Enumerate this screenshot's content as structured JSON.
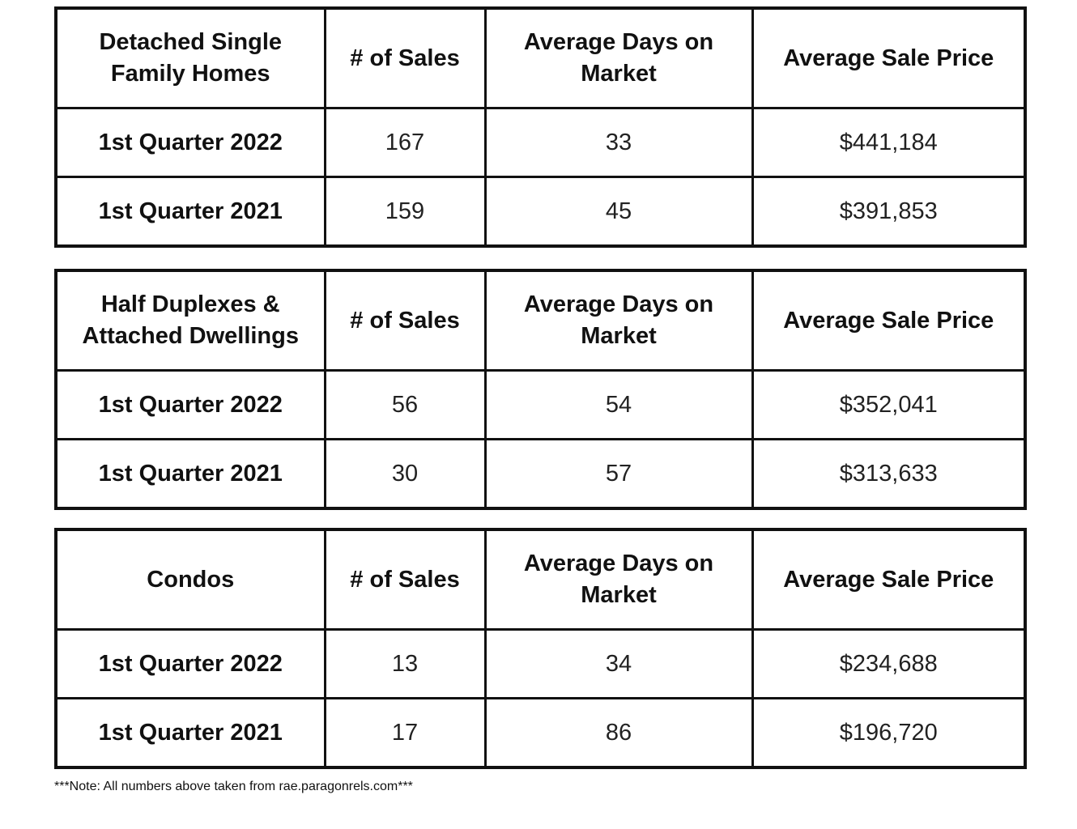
{
  "tables": [
    {
      "header": {
        "category": "Detached Single Family Homes",
        "sales": "# of Sales",
        "days": "Average Days on Market",
        "price": "Average Sale Price"
      },
      "rows": [
        {
          "label": "1st Quarter 2022",
          "sales": "167",
          "days": "33",
          "price": "$441,184"
        },
        {
          "label": "1st Quarter 2021",
          "sales": "159",
          "days": "45",
          "price": "$391,853"
        }
      ]
    },
    {
      "header": {
        "category": "Half Duplexes & Attached Dwellings",
        "sales": "# of Sales",
        "days": "Average Days on Market",
        "price": "Average Sale Price"
      },
      "rows": [
        {
          "label": "1st Quarter 2022",
          "sales": "56",
          "days": "54",
          "price": "$352,041"
        },
        {
          "label": "1st Quarter 2021",
          "sales": "30",
          "days": "57",
          "price": "$313,633"
        }
      ]
    },
    {
      "header": {
        "category": "Condos",
        "sales": "# of Sales",
        "days": "Average Days on Market",
        "price": "Average Sale Price"
      },
      "rows": [
        {
          "label": "1st Quarter 2022",
          "sales": "13",
          "days": "34",
          "price": "$234,688"
        },
        {
          "label": "1st Quarter 2021",
          "sales": "17",
          "days": "86",
          "price": "$196,720"
        }
      ]
    }
  ],
  "note": "***Note: All numbers above taken from rae.paragonrels.com***"
}
